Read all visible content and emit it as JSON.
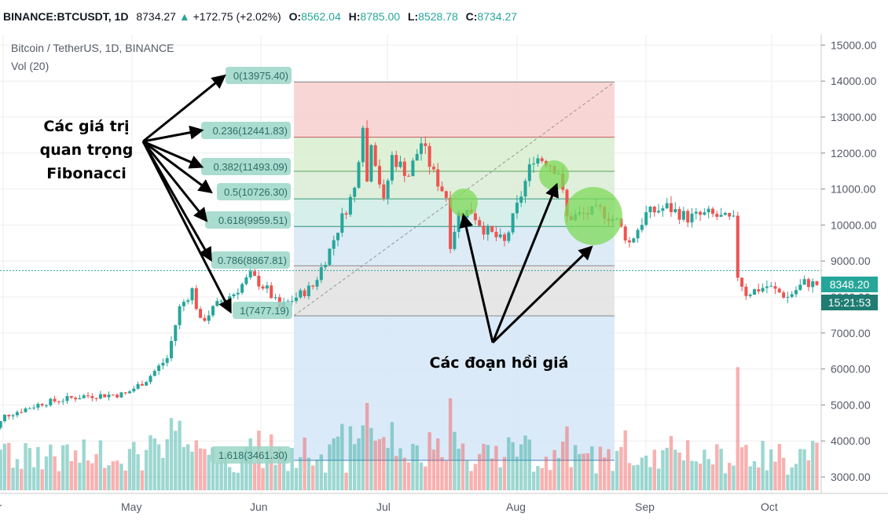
{
  "header": {
    "symbol": "BINANCE:BTCUSDT, 1D",
    "last": "8734.27",
    "change": "+172.75 (+2.02%)",
    "o_label": "O:",
    "o": "8562.04",
    "h_label": "H:",
    "h": "8785.00",
    "l_label": "L:",
    "l": "8528.78",
    "c_label": "C:",
    "c": "8734.27",
    "up_icon": "triangle-up-icon"
  },
  "legend": {
    "title": "Bitcoin / TetherUS, 1D, BINANCE",
    "vol": "Vol (20)"
  },
  "annotations": {
    "fib_label_line1": "Các giá trị",
    "fib_label_line2": "quan trọng",
    "fib_label_line3": "Fibonacci",
    "retrace_label": "Các đoạn hồi giá"
  },
  "badges": {
    "price": "8348.20",
    "time": "15:21:53"
  },
  "colors": {
    "up": "#26a69a",
    "down": "#ef5350",
    "fib_label_bg": "#9bd6c8",
    "highlight": "#7ed957"
  },
  "chart_data": {
    "type": "candlestick",
    "title": "Bitcoin / TetherUS, 1D, BINANCE",
    "ylim": [
      2800,
      15300
    ],
    "y_ticks": [
      "3000.00",
      "4000.00",
      "5000.00",
      "6000.00",
      "7000.00",
      "8000.00",
      "9000.00",
      "10000.00",
      "11000.00",
      "12000.00",
      "13000.00",
      "14000.00",
      "15000.00"
    ],
    "x_ticks": [
      "pr",
      "May",
      "Jun",
      "Jul",
      "Aug",
      "Sep",
      "Oct"
    ],
    "current_price": 8734.27,
    "fib_levels": [
      {
        "ratio": "0",
        "price": "13975.40",
        "label": "0(13975.40)"
      },
      {
        "ratio": "0.236",
        "price": "12441.83",
        "label": "0.236(12441.83)"
      },
      {
        "ratio": "0.382",
        "price": "11493.09",
        "label": "0.382(11493.09)"
      },
      {
        "ratio": "0.5",
        "price": "10726.30",
        "label": "0.5(10726.30)"
      },
      {
        "ratio": "0.618",
        "price": "9959.51",
        "label": "0.618(9959.51)"
      },
      {
        "ratio": "0.786",
        "price": "8867.81",
        "label": "0.786(8867.81)"
      },
      {
        "ratio": "1",
        "price": "7477.19",
        "label": "1(7477.19)"
      },
      {
        "ratio": "1.618",
        "price": "3461.30",
        "label": "1.618(3461.30)"
      }
    ],
    "price_anchors": [
      [
        "2019-03-28",
        4000
      ],
      [
        "2019-04-01",
        4700
      ],
      [
        "2019-04-10",
        5050
      ],
      [
        "2019-04-20",
        5250
      ],
      [
        "2019-04-30",
        5300
      ],
      [
        "2019-05-05",
        5700
      ],
      [
        "2019-05-10",
        6300
      ],
      [
        "2019-05-13",
        7700
      ],
      [
        "2019-05-16",
        8200
      ],
      [
        "2019-05-18",
        7300
      ],
      [
        "2019-05-23",
        7900
      ],
      [
        "2019-05-26",
        8100
      ],
      [
        "2019-05-30",
        8600
      ],
      [
        "2019-06-03",
        8200
      ],
      [
        "2019-06-06",
        7700
      ],
      [
        "2019-06-10",
        8000
      ],
      [
        "2019-06-14",
        8300
      ],
      [
        "2019-06-18",
        9300
      ],
      [
        "2019-06-21",
        10200
      ],
      [
        "2019-06-24",
        11000
      ],
      [
        "2019-06-26",
        12900
      ],
      [
        "2019-06-27",
        11200
      ],
      [
        "2019-06-28",
        12400
      ],
      [
        "2019-07-01",
        10600
      ],
      [
        "2019-07-03",
        11900
      ],
      [
        "2019-07-07",
        11400
      ],
      [
        "2019-07-10",
        12300
      ],
      [
        "2019-07-13",
        11400
      ],
      [
        "2019-07-16",
        10800
      ],
      [
        "2019-07-17",
        9500
      ],
      [
        "2019-07-19",
        10300
      ],
      [
        "2019-07-22",
        10400
      ],
      [
        "2019-07-25",
        9900
      ],
      [
        "2019-07-30",
        9500
      ],
      [
        "2019-08-02",
        10500
      ],
      [
        "2019-08-06",
        11900
      ],
      [
        "2019-08-09",
        11800
      ],
      [
        "2019-08-12",
        11500
      ],
      [
        "2019-08-14",
        10200
      ],
      [
        "2019-08-18",
        10300
      ],
      [
        "2019-08-22",
        10400
      ],
      [
        "2019-08-26",
        10100
      ],
      [
        "2019-08-29",
        9500
      ],
      [
        "2019-09-02",
        10300
      ],
      [
        "2019-09-07",
        10500
      ],
      [
        "2019-09-12",
        10200
      ],
      [
        "2019-09-17",
        10300
      ],
      [
        "2019-09-20",
        10200
      ],
      [
        "2019-09-23",
        10100
      ],
      [
        "2019-09-24",
        8600
      ],
      [
        "2019-09-26",
        8100
      ],
      [
        "2019-10-01",
        8300
      ],
      [
        "2019-10-06",
        8000
      ],
      [
        "2019-10-10",
        8400
      ],
      [
        "2019-10-13",
        8350
      ],
      [
        "2019-10-16",
        8348
      ]
    ]
  }
}
